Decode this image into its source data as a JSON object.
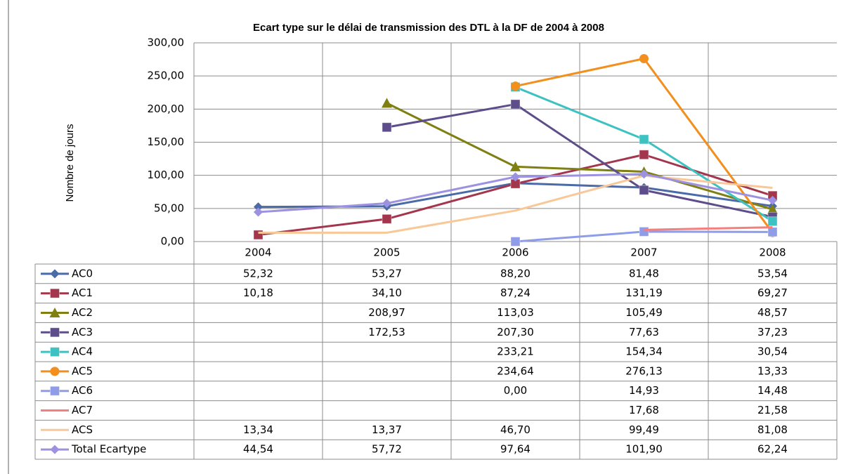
{
  "chart_data": {
    "type": "line",
    "title": "Ecart type sur le délai de transmission des DTL à la DF de 2004 à 2008",
    "y_label": "Nombre de jours",
    "categories": [
      "2004",
      "2005",
      "2006",
      "2007",
      "2008"
    ],
    "ylim": [
      0,
      300
    ],
    "yticks": [
      {
        "value": 0,
        "label": "0,00"
      },
      {
        "value": 50,
        "label": "50,00"
      },
      {
        "value": 100,
        "label": "100,00"
      },
      {
        "value": 150,
        "label": "150,00"
      },
      {
        "value": 200,
        "label": "200,00"
      },
      {
        "value": 250,
        "label": "250,00"
      },
      {
        "value": 300,
        "label": "300,00"
      }
    ],
    "grid": true,
    "series": [
      {
        "name": "AC0",
        "color": "#4a6aa8",
        "marker": "diamond",
        "values": [
          52.32,
          53.27,
          88.2,
          81.48,
          53.54
        ],
        "value_labels": [
          "52,32",
          "53,27",
          "88,20",
          "81,48",
          "53,54"
        ]
      },
      {
        "name": "AC1",
        "color": "#a3364c",
        "marker": "square",
        "values": [
          10.18,
          34.1,
          87.24,
          131.19,
          69.27
        ],
        "value_labels": [
          "10,18",
          "34,10",
          "87,24",
          "131,19",
          "69,27"
        ]
      },
      {
        "name": "AC2",
        "color": "#7f7f12",
        "marker": "triangle",
        "values": [
          null,
          208.97,
          113.03,
          105.49,
          48.57
        ],
        "value_labels": [
          null,
          "208,97",
          "113,03",
          "105,49",
          "48,57"
        ]
      },
      {
        "name": "AC3",
        "color": "#5d4d8a",
        "marker": "square",
        "values": [
          null,
          172.53,
          207.3,
          77.63,
          37.23
        ],
        "value_labels": [
          null,
          "172,53",
          "207,30",
          "77,63",
          "37,23"
        ]
      },
      {
        "name": "AC4",
        "color": "#3ec1c1",
        "marker": "square",
        "values": [
          null,
          null,
          233.21,
          154.34,
          30.54
        ],
        "value_labels": [
          null,
          null,
          "233,21",
          "154,34",
          "30,54"
        ]
      },
      {
        "name": "AC5",
        "color": "#f28f1d",
        "marker": "circle",
        "values": [
          null,
          null,
          234.64,
          276.13,
          13.33
        ],
        "value_labels": [
          null,
          null,
          "234,64",
          "276,13",
          "13,33"
        ]
      },
      {
        "name": "AC6",
        "color": "#8f9de8",
        "marker": "square",
        "values": [
          null,
          null,
          0.0,
          14.93,
          14.48
        ],
        "value_labels": [
          null,
          null,
          "0,00",
          "14,93",
          "14,48"
        ]
      },
      {
        "name": "AC7",
        "color": "#f47f7f",
        "marker": "none",
        "values": [
          null,
          null,
          null,
          17.68,
          21.58
        ],
        "value_labels": [
          null,
          null,
          null,
          "17,68",
          "21,58"
        ]
      },
      {
        "name": "ACS",
        "color": "#f9c898",
        "marker": "none",
        "values": [
          13.34,
          13.37,
          46.7,
          99.49,
          81.08
        ],
        "value_labels": [
          "13,34",
          "13,37",
          "46,70",
          "99,49",
          "81,08"
        ]
      },
      {
        "name": "Total Ecartype",
        "color": "#9d91e2",
        "marker": "diamond",
        "values": [
          44.54,
          57.72,
          97.64,
          101.9,
          62.24
        ],
        "value_labels": [
          "44,54",
          "57,72",
          "97,64",
          "101,90",
          "62,24"
        ]
      }
    ]
  }
}
